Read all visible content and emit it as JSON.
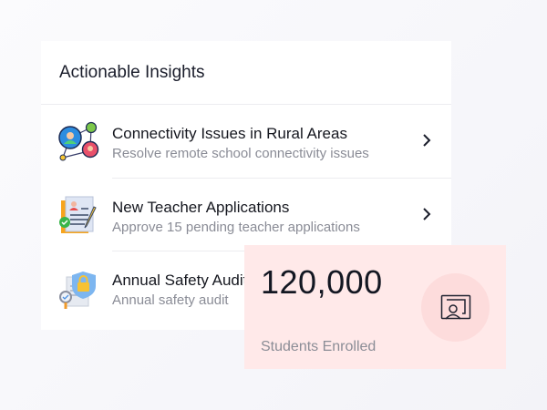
{
  "insights": {
    "title": "Actionable Insights",
    "items": [
      {
        "title": "Connectivity Issues in Rural Areas",
        "subtitle": "Resolve remote school connectivity issues",
        "icon": "network-people-icon"
      },
      {
        "title": "New Teacher Applications",
        "subtitle": "Approve 15 pending teacher applications",
        "icon": "application-document-icon"
      },
      {
        "title": "Annual Safety Audit",
        "subtitle": "Annual safety audit",
        "icon": "safety-audit-icon"
      }
    ]
  },
  "stat": {
    "value": "120,000",
    "label": "Students Enrolled",
    "icon": "classroom-teacher-icon",
    "background": "#ffe9e9"
  }
}
